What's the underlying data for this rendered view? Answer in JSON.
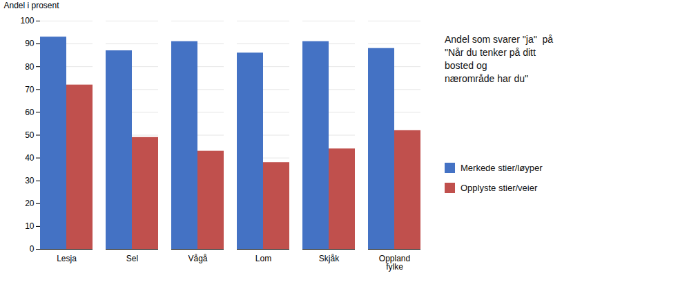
{
  "chart_data": {
    "type": "bar",
    "title": "Andel som svarer \"ja\"  på\n\"Når du tenker på ditt\nbosted og\nnærområde har du\"",
    "categories": [
      "Lesja",
      "Sel",
      "Vågå",
      "Lom",
      "Skjåk",
      "Oppland\nfylke"
    ],
    "series": [
      {
        "name": "Merkede stier/løyper",
        "color": "#4472C4",
        "values": [
          93,
          87,
          91,
          86,
          91,
          88
        ]
      },
      {
        "name": "Opplyste stier/veier",
        "color": "#C0504D",
        "values": [
          72,
          49,
          43,
          38,
          44,
          52
        ]
      }
    ],
    "ylabel": "Andel i prosent",
    "ylim": [
      0,
      100
    ],
    "yticks": [
      0,
      10,
      20,
      30,
      40,
      50,
      60,
      70,
      80,
      90,
      100
    ],
    "grid": true,
    "legend": "right"
  }
}
